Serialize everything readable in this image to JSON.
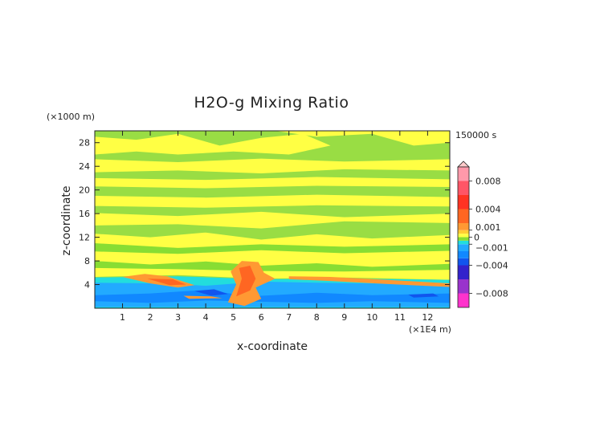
{
  "chart_data": {
    "type": "heatmap",
    "title": "H2O-g Mixing Ratio",
    "xlabel": "x-coordinate",
    "ylabel": "z-coordinate",
    "x_unit": "(×1E4 m)",
    "y_unit": "(×1000 m)",
    "time_label": "150000 s",
    "xlim": [
      0,
      12.8
    ],
    "ylim": [
      0,
      30
    ],
    "x_ticks": [
      1,
      2,
      3,
      4,
      5,
      6,
      7,
      8,
      9,
      10,
      11,
      12
    ],
    "y_ticks": [
      4,
      8,
      12,
      16,
      20,
      24,
      28
    ],
    "colorbar": {
      "range": [
        -0.01,
        0.01
      ],
      "labels": [
        {
          "value": 0.008,
          "text": "0.008"
        },
        {
          "value": 0.004,
          "text": "0.004"
        },
        {
          "value": 0.001,
          "text": "0.001"
        },
        {
          "value": 0,
          "text": "0"
        },
        {
          "value": -0.001,
          "text": "−0.001"
        },
        {
          "value": -0.004,
          "text": "−0.004"
        },
        {
          "value": -0.008,
          "text": "−0.008"
        }
      ],
      "bands": [
        {
          "min": -0.01,
          "max": -0.008,
          "color": "#ff33cc"
        },
        {
          "min": -0.008,
          "max": -0.006,
          "color": "#9933cc"
        },
        {
          "min": -0.006,
          "max": -0.004,
          "color": "#3322cc"
        },
        {
          "min": -0.004,
          "max": -0.003,
          "color": "#1155ee"
        },
        {
          "min": -0.003,
          "max": -0.002,
          "color": "#1188ff"
        },
        {
          "min": -0.002,
          "max": -0.001,
          "color": "#22aaff"
        },
        {
          "min": -0.001,
          "max": -0.0005,
          "color": "#22dddd"
        },
        {
          "min": -0.0005,
          "max": 0,
          "color": "#88dd33"
        },
        {
          "min": 0,
          "max": 0.0005,
          "color": "#ffff44"
        },
        {
          "min": 0.0005,
          "max": 0.001,
          "color": "#ffcc33"
        },
        {
          "min": 0.001,
          "max": 0.002,
          "color": "#ff9933"
        },
        {
          "min": 0.002,
          "max": 0.004,
          "color": "#ff6622"
        },
        {
          "min": 0.004,
          "max": 0.006,
          "color": "#ff3322"
        },
        {
          "min": 0.006,
          "max": 0.008,
          "color": "#ff5566"
        },
        {
          "min": 0.008,
          "max": 0.01,
          "color": "#ff99aa"
        }
      ],
      "overflow_arrow_color": "#ffcccc"
    },
    "background_color": "#99dd44",
    "regions": [
      {
        "level": 0.0002,
        "color": "#ffff44",
        "points": [
          [
            0,
            29
          ],
          [
            1.5,
            28.5
          ],
          [
            3,
            29.5
          ],
          [
            4.5,
            27.5
          ],
          [
            6,
            28.8
          ],
          [
            7.5,
            29.5
          ],
          [
            8.5,
            27.5
          ],
          [
            7,
            26
          ],
          [
            5,
            26.5
          ],
          [
            3,
            26
          ],
          [
            1.5,
            26.5
          ],
          [
            0,
            26
          ]
        ]
      },
      {
        "level": 0.0002,
        "color": "#ffff44",
        "points": [
          [
            6.5,
            30
          ],
          [
            8,
            29
          ],
          [
            10,
            29.5
          ],
          [
            11.5,
            27.5
          ],
          [
            12.8,
            28
          ],
          [
            12.8,
            30
          ]
        ]
      },
      {
        "level": 0.0002,
        "color": "#ffff44",
        "points": [
          [
            0,
            25.2
          ],
          [
            3,
            24.7
          ],
          [
            6,
            25.3
          ],
          [
            9,
            24.8
          ],
          [
            12.8,
            25.2
          ],
          [
            12.8,
            23.3
          ],
          [
            9,
            23.5
          ],
          [
            6,
            22.8
          ],
          [
            3,
            23.3
          ],
          [
            0,
            23
          ]
        ]
      },
      {
        "level": 0.0002,
        "color": "#ffff44",
        "points": [
          [
            0,
            22
          ],
          [
            4,
            21.7
          ],
          [
            8,
            22.2
          ],
          [
            12.8,
            21.8
          ],
          [
            12.8,
            20.5
          ],
          [
            8,
            20.7
          ],
          [
            4,
            20.3
          ],
          [
            0,
            20.6
          ]
        ]
      },
      {
        "level": 0.0002,
        "color": "#ffff44",
        "points": [
          [
            0,
            19
          ],
          [
            4,
            18.7
          ],
          [
            8,
            19.2
          ],
          [
            12.8,
            18.8
          ],
          [
            12.8,
            17.2
          ],
          [
            8,
            17.4
          ],
          [
            4,
            17
          ],
          [
            0,
            17.3
          ]
        ]
      },
      {
        "level": 0.0002,
        "color": "#ffff44",
        "points": [
          [
            0,
            16.1
          ],
          [
            3,
            15.6
          ],
          [
            6,
            16.3
          ],
          [
            9,
            15.4
          ],
          [
            12.8,
            16
          ],
          [
            12.8,
            14.4
          ],
          [
            9,
            14.7
          ],
          [
            6,
            13.5
          ],
          [
            3,
            14.2
          ],
          [
            0,
            14
          ]
        ]
      },
      {
        "level": 0.0002,
        "color": "#ffff44",
        "points": [
          [
            0,
            12.6
          ],
          [
            2,
            12
          ],
          [
            4,
            12.8
          ],
          [
            6,
            11.6
          ],
          [
            8,
            12.5
          ],
          [
            10,
            11.8
          ],
          [
            12.8,
            12.4
          ],
          [
            12.8,
            4.8
          ],
          [
            9,
            5.2
          ],
          [
            6,
            5
          ],
          [
            3,
            5.6
          ],
          [
            0,
            5.3
          ]
        ]
      },
      {
        "level": -0.0002,
        "color": "#88dd33",
        "points": [
          [
            0,
            11
          ],
          [
            3,
            10.2
          ],
          [
            6,
            10.8
          ],
          [
            9,
            10.4
          ],
          [
            12.8,
            10.8
          ],
          [
            12.8,
            9.7
          ],
          [
            9,
            9.3
          ],
          [
            6,
            9.8
          ],
          [
            3,
            9.2
          ],
          [
            0,
            9.6
          ]
        ]
      },
      {
        "level": -0.0002,
        "color": "#88dd33",
        "points": [
          [
            0,
            8
          ],
          [
            2,
            7.4
          ],
          [
            4,
            7.9
          ],
          [
            6,
            7.2
          ],
          [
            8,
            7.6
          ],
          [
            10,
            7
          ],
          [
            12.8,
            7.5
          ],
          [
            12.8,
            6.5
          ],
          [
            9,
            6.2
          ],
          [
            6,
            6.3
          ],
          [
            3,
            6.6
          ],
          [
            0,
            6.8
          ]
        ]
      },
      {
        "level": -0.0007,
        "color": "#22dddd",
        "points": [
          [
            0,
            5.2
          ],
          [
            3,
            5.4
          ],
          [
            6,
            4.9
          ],
          [
            9,
            5
          ],
          [
            12.8,
            4.8
          ],
          [
            12.8,
            0
          ],
          [
            0,
            0
          ]
        ]
      },
      {
        "level": -0.0015,
        "color": "#22aaff",
        "points": [
          [
            0,
            4.3
          ],
          [
            2.5,
            4.2
          ],
          [
            4,
            3.8
          ],
          [
            6,
            4.5
          ],
          [
            8,
            4.3
          ],
          [
            10,
            4.2
          ],
          [
            12.8,
            4
          ],
          [
            12.8,
            0.2
          ],
          [
            0,
            0.2
          ]
        ]
      },
      {
        "level": -0.0025,
        "color": "#1188ff",
        "points": [
          [
            0,
            2.2
          ],
          [
            2,
            2.5
          ],
          [
            4,
            3.1
          ],
          [
            5,
            2.4
          ],
          [
            6,
            2.1
          ],
          [
            8,
            2.6
          ],
          [
            10,
            2.2
          ],
          [
            12.8,
            2.5
          ],
          [
            12.8,
            0.9
          ],
          [
            10,
            1.2
          ],
          [
            8,
            0.9
          ],
          [
            6,
            1.1
          ],
          [
            4,
            1.3
          ],
          [
            2,
            0.9
          ],
          [
            0,
            1.2
          ]
        ]
      },
      {
        "level": -0.0035,
        "color": "#1155ee",
        "points": [
          [
            3.6,
            2.9
          ],
          [
            4.3,
            3.2
          ],
          [
            4.8,
            2.4
          ],
          [
            4.2,
            2.1
          ]
        ]
      },
      {
        "level": -0.0035,
        "color": "#1155ee",
        "points": [
          [
            11.3,
            2.3
          ],
          [
            12.2,
            2.5
          ],
          [
            12.4,
            2
          ],
          [
            11.5,
            1.8
          ]
        ]
      },
      {
        "level": 0.0015,
        "color": "#ff9933",
        "points": [
          [
            4.8,
            1
          ],
          [
            5.1,
            4
          ],
          [
            4.9,
            6.2
          ],
          [
            5.3,
            8
          ],
          [
            5.9,
            7.8
          ],
          [
            6.1,
            6
          ],
          [
            6.5,
            5
          ],
          [
            5.8,
            3.5
          ],
          [
            6,
            1.6
          ],
          [
            5.4,
            0.4
          ]
        ]
      },
      {
        "level": 0.003,
        "color": "#ff6622",
        "points": [
          [
            5.1,
            2
          ],
          [
            5.3,
            5
          ],
          [
            5.2,
            6.8
          ],
          [
            5.6,
            7.2
          ],
          [
            5.8,
            5
          ],
          [
            5.6,
            3
          ]
        ]
      },
      {
        "level": 0.0015,
        "color": "#ff9933",
        "points": [
          [
            1,
            5.3
          ],
          [
            1.8,
            5.8
          ],
          [
            2.6,
            5.4
          ],
          [
            3.6,
            3.9
          ],
          [
            3,
            3.5
          ],
          [
            2,
            4.2
          ]
        ]
      },
      {
        "level": 0.003,
        "color": "#ff6622",
        "points": [
          [
            1.9,
            5
          ],
          [
            2.8,
            4.9
          ],
          [
            3.3,
            4
          ],
          [
            2.7,
            3.9
          ]
        ]
      },
      {
        "level": 0.0015,
        "color": "#ff9933",
        "points": [
          [
            7,
            5.4
          ],
          [
            8.5,
            5.3
          ],
          [
            10.5,
            4.8
          ],
          [
            12.8,
            4.2
          ],
          [
            12.8,
            3.6
          ],
          [
            10.5,
            4.1
          ],
          [
            8.5,
            4.6
          ],
          [
            7,
            4.9
          ]
        ]
      },
      {
        "level": 0.0015,
        "color": "#ff9933",
        "points": [
          [
            3.2,
            2.1
          ],
          [
            4.2,
            2
          ],
          [
            4.6,
            1.7
          ],
          [
            3.4,
            1.6
          ]
        ]
      }
    ]
  }
}
